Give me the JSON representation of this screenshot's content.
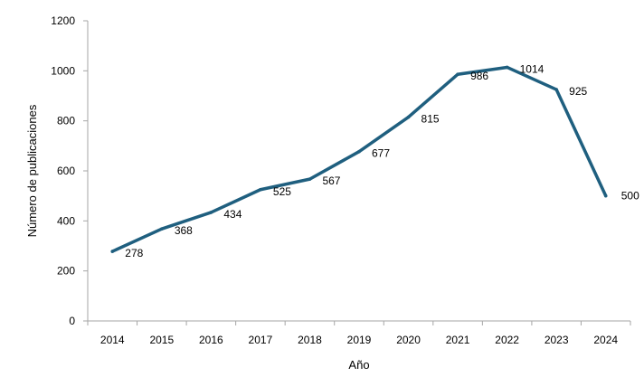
{
  "chart_data": {
    "type": "line",
    "title": "",
    "xlabel": "Año",
    "ylabel": "Número de publicaciones",
    "categories": [
      "2014",
      "2015",
      "2016",
      "2017",
      "2018",
      "2019",
      "2020",
      "2021",
      "2022",
      "2023",
      "2024"
    ],
    "series": [
      {
        "values": [
          278,
          368,
          434,
          525,
          567,
          677,
          815,
          986,
          1014,
          925,
          500
        ]
      }
    ],
    "ylim": [
      0,
      1200
    ],
    "yticks": [
      0,
      200,
      400,
      600,
      800,
      1000,
      1200
    ],
    "grid": false,
    "legend": "none",
    "data_labels": true,
    "line_color": "#1f5f7f"
  }
}
